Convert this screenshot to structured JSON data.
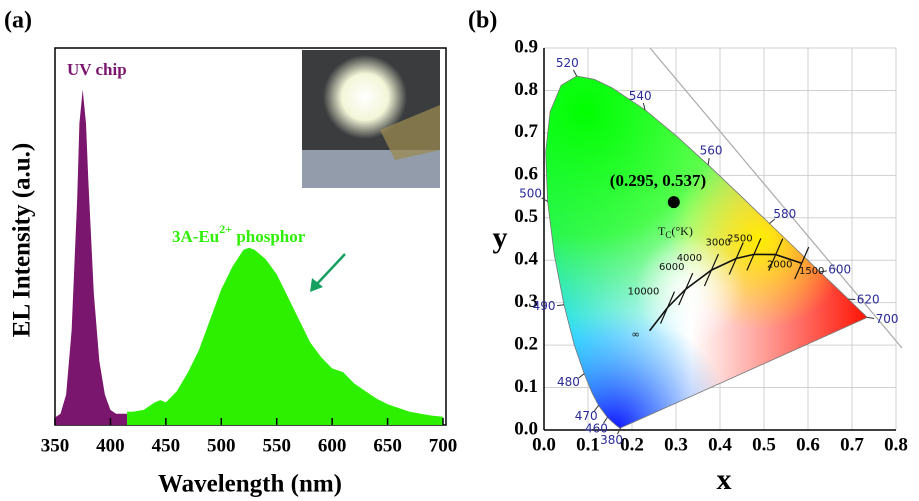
{
  "chart_data": [
    {
      "type": "area",
      "panel_label": "(a)",
      "x_label": "Wavelength (nm)",
      "y_label": "EL Intensity (a.u.)",
      "xlim": [
        350,
        700
      ],
      "xticks": [
        350,
        400,
        450,
        500,
        550,
        600,
        650,
        700
      ],
      "ylim": [
        0,
        1
      ],
      "series": [
        {
          "name": "UV chip",
          "color": "#7b166f",
          "x": [
            350,
            355,
            360,
            365,
            370,
            372,
            375,
            378,
            380,
            385,
            390,
            395,
            400,
            405,
            410,
            415
          ],
          "values": [
            0.02,
            0.03,
            0.08,
            0.25,
            0.6,
            0.8,
            0.89,
            0.8,
            0.65,
            0.35,
            0.17,
            0.08,
            0.04,
            0.03,
            0.03,
            0.03
          ]
        },
        {
          "name": {
            "main": "3A-Eu",
            "sup": "2+",
            "rest": " phosphor"
          },
          "color": "#2cf000",
          "x": [
            415,
            420,
            430,
            440,
            445,
            450,
            460,
            470,
            480,
            490,
            500,
            510,
            520,
            525,
            530,
            540,
            550,
            560,
            570,
            580,
            590,
            600,
            610,
            620,
            630,
            640,
            650,
            660,
            670,
            680,
            690,
            700
          ],
          "values": [
            0.035,
            0.035,
            0.04,
            0.06,
            0.066,
            0.06,
            0.09,
            0.14,
            0.2,
            0.28,
            0.36,
            0.42,
            0.465,
            0.47,
            0.465,
            0.44,
            0.4,
            0.34,
            0.28,
            0.22,
            0.18,
            0.15,
            0.14,
            0.11,
            0.09,
            0.07,
            0.055,
            0.045,
            0.035,
            0.03,
            0.025,
            0.022
          ]
        }
      ]
    },
    {
      "type": "cie",
      "panel_label": "(b)",
      "x_label": "x",
      "y_label": "y",
      "grid": true,
      "xlim": [
        0,
        0.8
      ],
      "ylim": [
        0,
        0.9
      ],
      "xticks": [
        {
          "value": 0,
          "label": "0.0"
        },
        0.1,
        0.2,
        0.3,
        0.4,
        0.5,
        0.6,
        0.7,
        0.8
      ],
      "yticks": [
        {
          "value": 0,
          "label": "0.0"
        },
        0.1,
        0.2,
        0.3,
        0.4,
        0.5,
        0.6,
        0.7,
        0.8,
        0.9
      ],
      "spectral_locus": {
        "wavelengths": [
          380,
          null,
          null,
          null,
          460,
          470,
          null,
          480,
          null,
          490,
          null,
          500,
          null,
          null,
          null,
          520,
          null,
          null,
          540,
          null,
          560,
          null,
          580,
          null,
          600,
          null,
          620,
          null,
          700
        ],
        "x": [
          0.1741,
          0.1714,
          0.1644,
          0.1566,
          0.144,
          0.1241,
          0.1096,
          0.0913,
          0.0687,
          0.0454,
          0.0235,
          0.0082,
          0.0039,
          0.0139,
          0.0389,
          0.0743,
          0.1142,
          0.1547,
          0.2296,
          0.3016,
          0.3731,
          0.4441,
          0.5125,
          0.5752,
          0.627,
          0.6658,
          0.6915,
          0.719,
          0.7347
        ],
        "y": [
          0.005,
          0.0051,
          0.0109,
          0.0177,
          0.0297,
          0.0578,
          0.0868,
          0.1327,
          0.2007,
          0.295,
          0.4127,
          0.5384,
          0.6548,
          0.7502,
          0.812,
          0.8338,
          0.8262,
          0.8059,
          0.7543,
          0.6923,
          0.6245,
          0.5547,
          0.4866,
          0.4242,
          0.3725,
          0.334,
          0.3083,
          0.2809,
          0.2653
        ]
      },
      "planckian_locus": {
        "title": {
          "main": "T",
          "sub": "C",
          "rest": "(°K)"
        },
        "temperatures": [
          1500,
          2000,
          2500,
          3000,
          4000,
          6000,
          10000,
          "∞"
        ],
        "x": [
          0.5857,
          0.5267,
          0.477,
          0.4369,
          0.3805,
          0.3221,
          0.2807,
          0.2399
        ],
        "y": [
          0.3931,
          0.4133,
          0.4137,
          0.4041,
          0.3768,
          0.3318,
          0.2883,
          0.234
        ]
      },
      "point": {
        "x": 0.295,
        "y": 0.537,
        "label": "(0.295, 0.537)"
      }
    }
  ]
}
